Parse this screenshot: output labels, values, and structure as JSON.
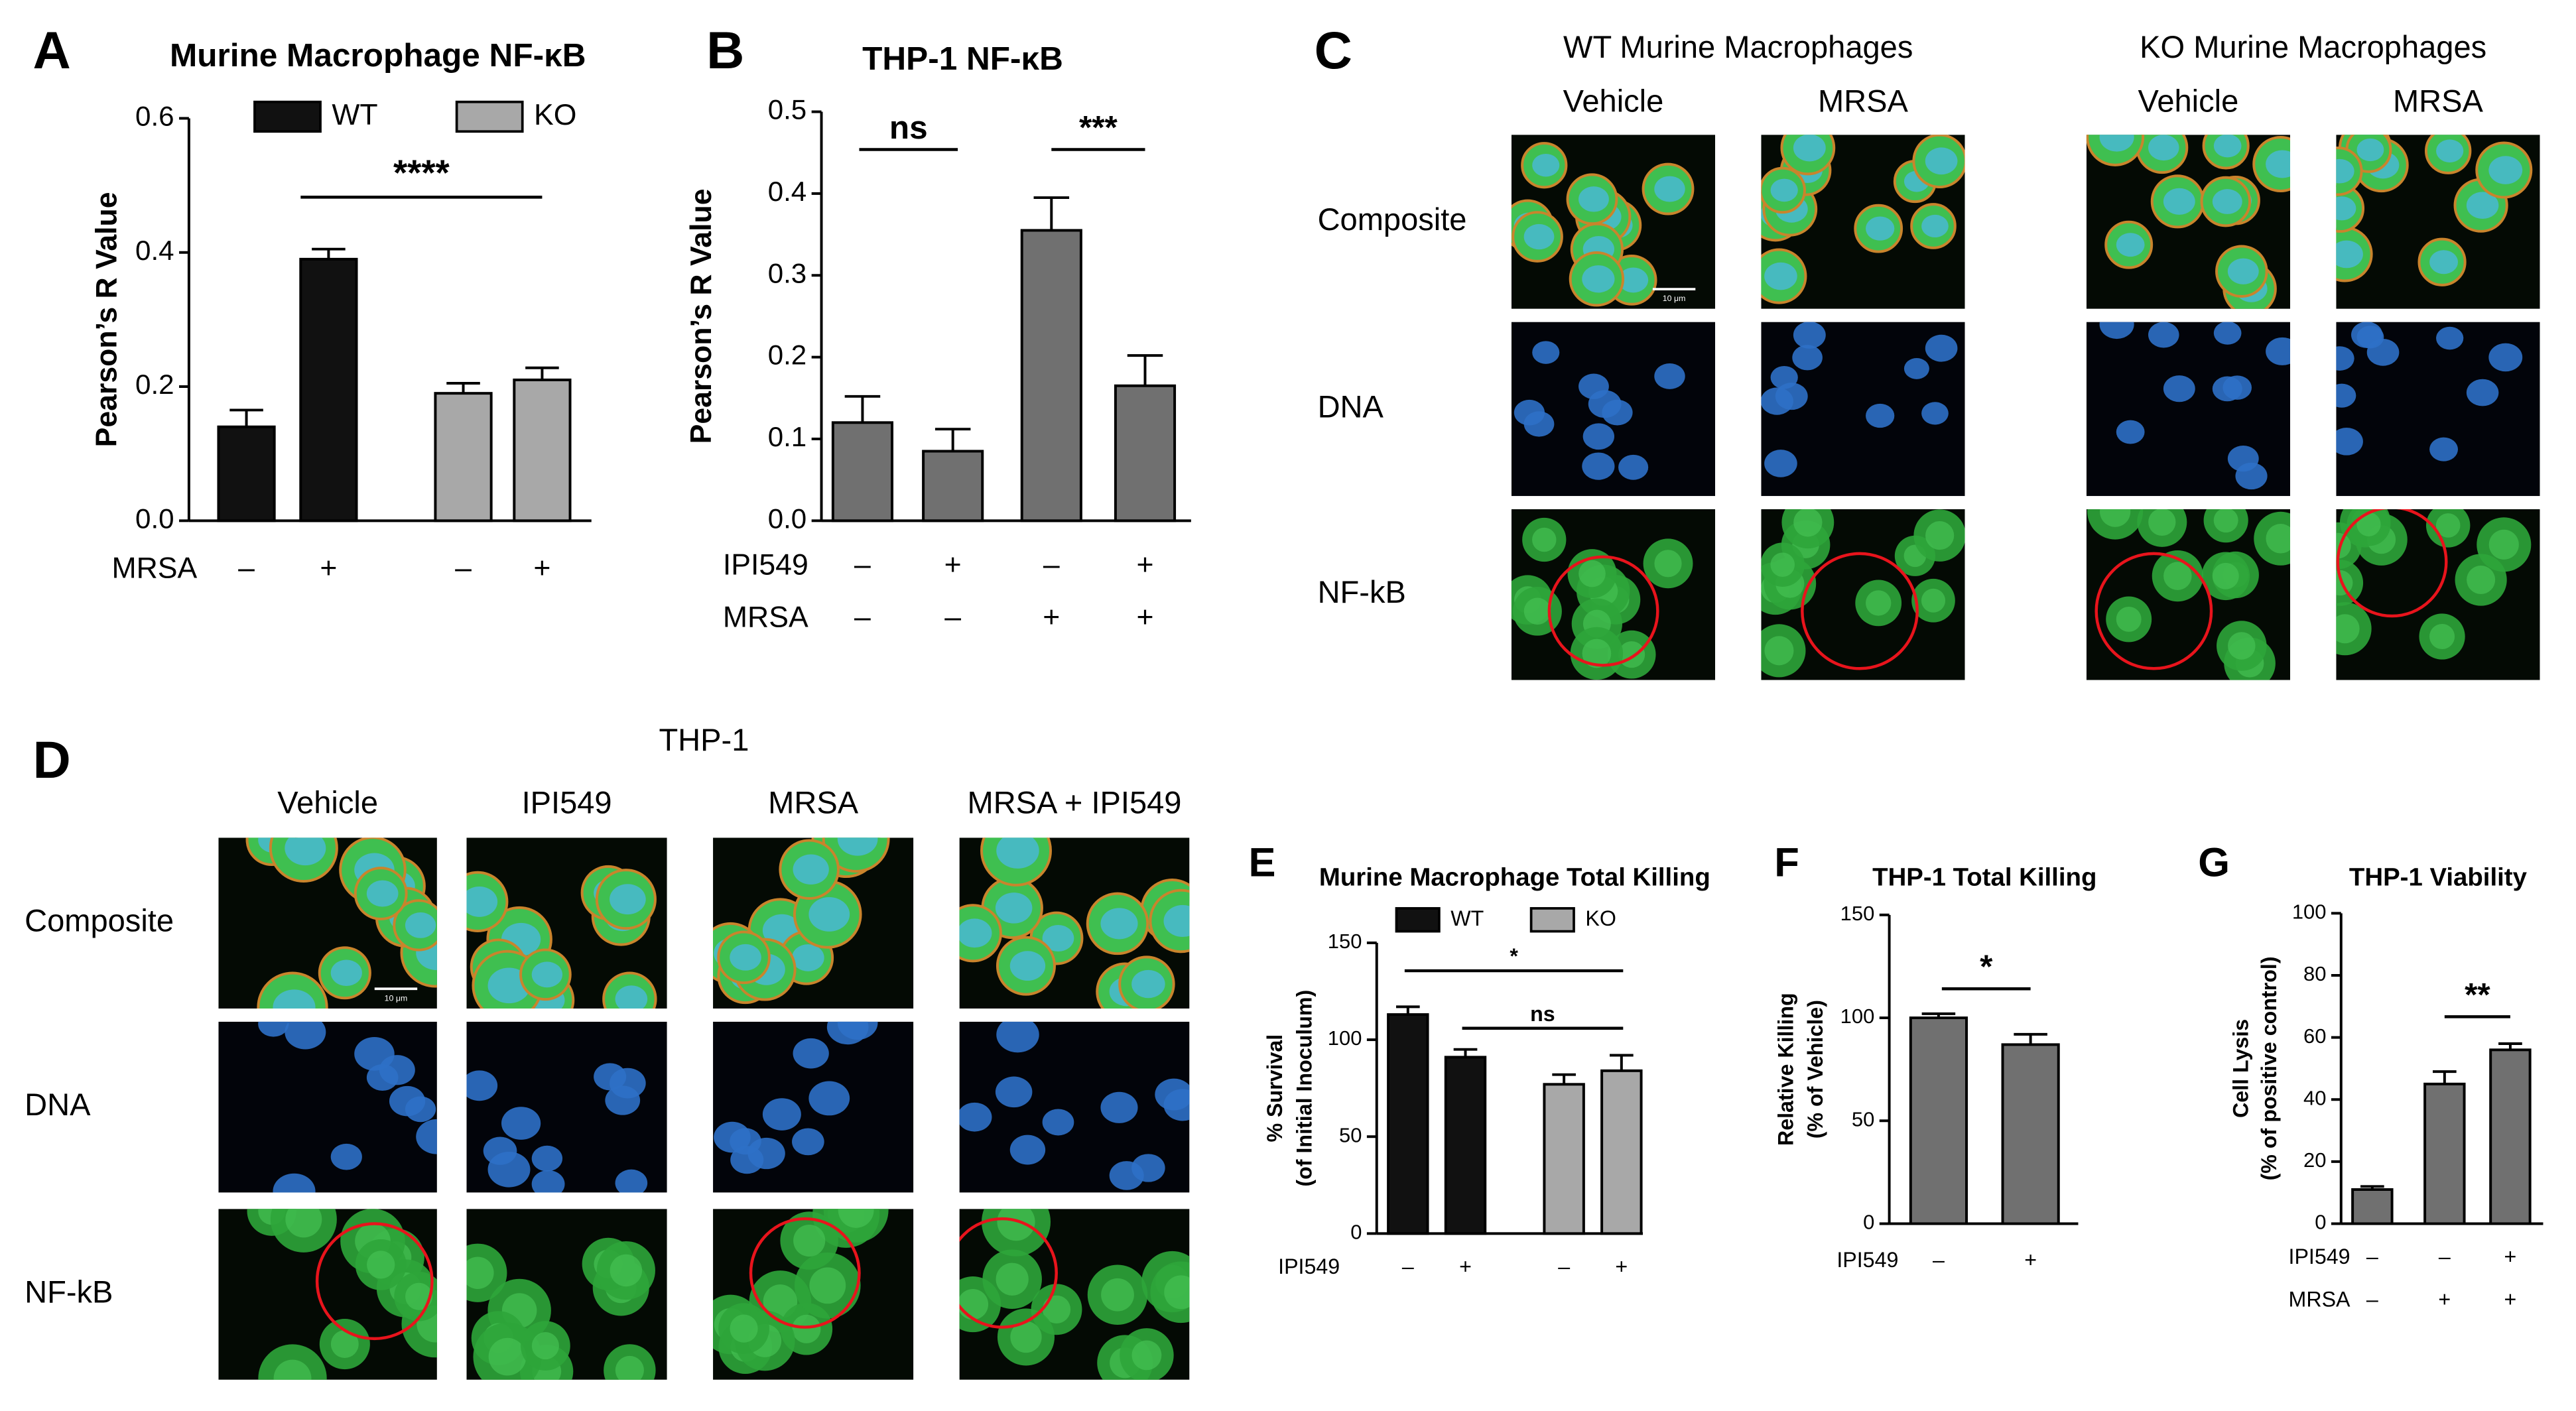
{
  "chart_data": [
    {
      "type": "bar",
      "letter": "A",
      "title": "Murine Macrophage NF-κB",
      "ylabel": [
        "Pearson’s R Value"
      ],
      "ylim": [
        0,
        0.6
      ],
      "yticks": [
        {
          "value": 0,
          "label": "0.0"
        },
        {
          "value": 0.2,
          "label": "0.2"
        },
        {
          "value": 0.4,
          "label": "0.4"
        },
        {
          "value": 0.6,
          "label": "0.6"
        }
      ],
      "series": [
        {
          "name": "WT",
          "color": "#111111",
          "values": [
            0.14,
            0.39
          ],
          "errors": [
            0.025,
            0.015
          ]
        },
        {
          "name": "KO",
          "color": "#a8a8a8",
          "values": [
            0.19,
            0.21
          ],
          "errors": [
            0.015,
            0.018
          ]
        }
      ],
      "legend": true,
      "conditions": [
        {
          "name": "MRSA",
          "signs": [
            "–",
            "+",
            "–",
            "+"
          ]
        }
      ],
      "annotations": [
        "****"
      ]
    },
    {
      "type": "bar",
      "letter": "B",
      "title": "THP-1 NF-κB",
      "ylabel": [
        "Pearson’s R Value"
      ],
      "ylim": [
        0,
        0.5
      ],
      "yticks": [
        {
          "value": 0,
          "label": "0.0"
        },
        0.1,
        0.2,
        0.3,
        0.4,
        0.5
      ],
      "series": [
        {
          "name": "THP-1",
          "color": "#707070",
          "values": [
            0.12,
            0.085,
            0.355,
            0.165
          ],
          "errors": [
            0.032,
            0.027,
            0.04,
            0.037
          ]
        }
      ],
      "legend": false,
      "conditions": [
        {
          "name": "IPI549",
          "signs": [
            "–",
            "+",
            "–",
            "+"
          ]
        },
        {
          "name": "MRSA",
          "signs": [
            "–",
            "–",
            "+",
            "+"
          ]
        }
      ],
      "annotations": [
        "ns",
        "***"
      ]
    },
    {
      "type": "bar",
      "letter": "E",
      "title": "Murine Macrophage Total Killing",
      "ylabel": [
        "% Survival",
        "(of Initial Inoculum)"
      ],
      "ylim": [
        0,
        150
      ],
      "yticks": [
        0,
        50,
        100,
        150
      ],
      "series": [
        {
          "name": "WT",
          "color": "#111111",
          "values": [
            113,
            91
          ],
          "errors": [
            4,
            4
          ]
        },
        {
          "name": "KO",
          "color": "#a8a8a8",
          "values": [
            77,
            84
          ],
          "errors": [
            5,
            8
          ]
        }
      ],
      "legend": true,
      "conditions": [
        {
          "name": "IPI549",
          "signs": [
            "–",
            "+",
            "–",
            "+"
          ]
        }
      ],
      "annotations": [
        "*",
        "ns"
      ]
    },
    {
      "type": "bar",
      "letter": "F",
      "title": "THP-1 Total Killing",
      "ylabel": [
        "Relative Killing",
        "(% of Vehicle)"
      ],
      "ylim": [
        0,
        150
      ],
      "yticks": [
        0,
        50,
        100,
        150
      ],
      "series": [
        {
          "name": "THP-1",
          "color": "#707070",
          "values": [
            100,
            87
          ],
          "errors": [
            2,
            5
          ]
        }
      ],
      "legend": false,
      "conditions": [
        {
          "name": "IPI549",
          "signs": [
            "–",
            "+"
          ]
        }
      ],
      "annotations": [
        "*"
      ]
    },
    {
      "type": "bar",
      "letter": "G",
      "title": "THP-1 Viability",
      "ylabel": [
        "Cell Lysis",
        "(% of positive control)"
      ],
      "ylim": [
        0,
        100
      ],
      "yticks": [
        0,
        20,
        40,
        60,
        80,
        100
      ],
      "series": [
        {
          "name": "THP-1",
          "color": "#707070",
          "values": [
            11,
            45,
            56
          ],
          "errors": [
            1,
            4,
            2
          ]
        }
      ],
      "legend": false,
      "conditions": [
        {
          "name": "IPI549",
          "signs": [
            "–",
            "–",
            "+"
          ]
        },
        {
          "name": "MRSA",
          "signs": [
            "–",
            "+",
            "+"
          ]
        }
      ],
      "annotations": [
        "**"
      ]
    }
  ],
  "microscopy": [
    {
      "letter": "C",
      "groups": [
        {
          "title": "WT Murine Macrophages",
          "columns": [
            "Vehicle",
            "MRSA"
          ]
        },
        {
          "title": "KO Murine Macrophages",
          "columns": [
            "Vehicle",
            "MRSA"
          ]
        }
      ],
      "rows": [
        "Composite",
        "DNA",
        "NF-kB"
      ],
      "scale_bar": "10 μm"
    },
    {
      "letter": "D",
      "groups": [
        {
          "title": "THP-1",
          "columns": [
            "Vehicle",
            "IPI549",
            "MRSA",
            "MRSA + IPI549"
          ]
        }
      ],
      "rows": [
        "Composite",
        "DNA",
        "NF-kB"
      ],
      "scale_bar": "10 μm"
    }
  ]
}
